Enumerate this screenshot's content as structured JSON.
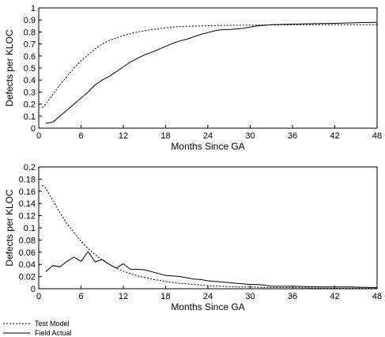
{
  "legend": {
    "items": [
      {
        "name": "Test Model",
        "style": "dotted"
      },
      {
        "name": "Field Actual",
        "style": "solid"
      }
    ],
    "placement": "bottom-left"
  },
  "colors": {
    "line": "#000000",
    "background": "#ffffff"
  },
  "chart_data": [
    {
      "type": "line",
      "xlabel": "Months Since GA",
      "ylabel": "Defects per KLOC",
      "xlim": [
        0,
        48
      ],
      "ylim": [
        0,
        1
      ],
      "xticks": [
        0,
        6,
        12,
        18,
        24,
        30,
        36,
        42,
        48
      ],
      "yticks": [
        0,
        0.1,
        0.2,
        0.3,
        0.4,
        0.5,
        0.6,
        0.7,
        0.8,
        0.9,
        1
      ],
      "grid": false,
      "series": [
        {
          "name": "Test Model",
          "style": "dotted",
          "x": [
            0.5,
            1,
            2,
            3,
            4,
            5,
            6,
            7,
            8,
            9,
            10,
            11,
            12,
            14,
            16,
            18,
            20,
            24,
            28,
            32,
            36,
            40,
            44,
            48
          ],
          "y": [
            0.17,
            0.2,
            0.28,
            0.36,
            0.43,
            0.5,
            0.56,
            0.61,
            0.66,
            0.7,
            0.73,
            0.75,
            0.77,
            0.8,
            0.82,
            0.835,
            0.845,
            0.852,
            0.856,
            0.858,
            0.86,
            0.86,
            0.86,
            0.86
          ]
        },
        {
          "name": "Field Actual",
          "style": "solid",
          "x": [
            1,
            2,
            3,
            4,
            5,
            6,
            7,
            8,
            9,
            10,
            11,
            12,
            13,
            14,
            15,
            16,
            17,
            18,
            19,
            20,
            21,
            22,
            23,
            24,
            25,
            26,
            27,
            28,
            29,
            30,
            31,
            32,
            33,
            34,
            36,
            38,
            40,
            42,
            44,
            46,
            48
          ],
          "y": [
            0.04,
            0.05,
            0.1,
            0.15,
            0.2,
            0.25,
            0.3,
            0.36,
            0.4,
            0.43,
            0.47,
            0.51,
            0.55,
            0.58,
            0.61,
            0.63,
            0.655,
            0.68,
            0.705,
            0.725,
            0.74,
            0.76,
            0.78,
            0.795,
            0.81,
            0.82,
            0.82,
            0.825,
            0.83,
            0.84,
            0.85,
            0.855,
            0.86,
            0.862,
            0.865,
            0.868,
            0.87,
            0.872,
            0.875,
            0.878,
            0.88
          ]
        }
      ]
    },
    {
      "type": "line",
      "xlabel": "Months Since GA",
      "ylabel": "Defects per KLOC",
      "xlim": [
        0,
        48
      ],
      "ylim": [
        0,
        0.2
      ],
      "xticks": [
        0,
        6,
        12,
        18,
        24,
        30,
        36,
        42,
        48
      ],
      "yticks": [
        0,
        0.02,
        0.04,
        0.06,
        0.08,
        0.1,
        0.12,
        0.14,
        0.16,
        0.18,
        0.2
      ],
      "grid": false,
      "series": [
        {
          "name": "Test Model",
          "style": "dotted",
          "x": [
            0.5,
            1,
            2,
            3,
            4,
            5,
            6,
            7,
            8,
            9,
            10,
            11,
            12,
            13,
            14,
            16,
            18,
            20,
            22,
            24,
            26,
            28,
            30,
            32,
            36,
            40,
            44,
            48
          ],
          "y": [
            0.17,
            0.165,
            0.145,
            0.125,
            0.107,
            0.092,
            0.078,
            0.066,
            0.056,
            0.047,
            0.04,
            0.034,
            0.029,
            0.025,
            0.021,
            0.016,
            0.012,
            0.009,
            0.007,
            0.005,
            0.004,
            0.003,
            0.003,
            0.002,
            0.002,
            0.001,
            0.001,
            0.001
          ]
        },
        {
          "name": "Field Actual",
          "style": "solid",
          "x": [
            1,
            2,
            3,
            4,
            5,
            6,
            7,
            8,
            9,
            10,
            11,
            12,
            13,
            14,
            15,
            16,
            17,
            18,
            19,
            20,
            21,
            22,
            23,
            24,
            25,
            26,
            27,
            28,
            29,
            30,
            31,
            32,
            33,
            36,
            40,
            44,
            48
          ],
          "y": [
            0.028,
            0.038,
            0.036,
            0.045,
            0.052,
            0.045,
            0.061,
            0.044,
            0.048,
            0.04,
            0.034,
            0.041,
            0.032,
            0.032,
            0.031,
            0.028,
            0.025,
            0.022,
            0.021,
            0.02,
            0.018,
            0.016,
            0.015,
            0.013,
            0.012,
            0.011,
            0.01,
            0.009,
            0.008,
            0.007,
            0.007,
            0.006,
            0.004,
            0.004,
            0.003,
            0.003,
            0.002
          ]
        }
      ]
    }
  ]
}
